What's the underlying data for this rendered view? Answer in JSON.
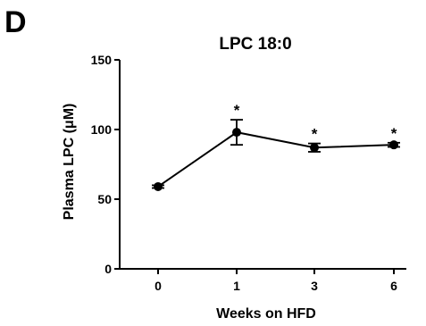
{
  "panel_label": "D",
  "chart_data": {
    "type": "line",
    "title": "LPC 18:0",
    "xlabel": "Weeks on HFD",
    "ylabel": "Plasma LPC (μM)",
    "categories": [
      "0",
      "1",
      "3",
      "6"
    ],
    "values": [
      59,
      98,
      87,
      89
    ],
    "error": [
      1,
      9,
      3,
      1.5
    ],
    "significance": [
      "",
      "*",
      "*",
      "*"
    ],
    "ylim": [
      0,
      150
    ],
    "yticks": [
      0,
      50,
      100,
      150
    ],
    "grid": false,
    "legend": "none",
    "colors": {
      "line": "#000000",
      "marker": "#000000"
    }
  }
}
